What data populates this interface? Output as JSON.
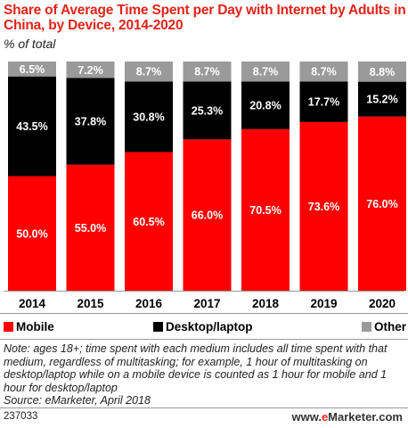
{
  "title": "Share of Average Time Spent per Day with Internet by Adults in China, by Device, 2014-2020",
  "subtitle": "% of total",
  "legend": {
    "mobile": "Mobile",
    "desktop": "Desktop/laptop",
    "other": "Other"
  },
  "note": "Note: ages 18+; time spent with each medium includes all time spent with that medium, regardless of multitasking; for example, 1 hour of multitasking on desktop/laptop while on a mobile device is counted as 1 hour for mobile and 1 hour for desktop/laptop",
  "source": "Source: eMarketer, April 2018",
  "chart_id": "237033",
  "brand": {
    "prefix": "www.",
    "e": "e",
    "rest": "Marketer.com"
  },
  "colors": {
    "mobile": "#ff0000",
    "desktop": "#000000",
    "other": "#9a9a9a",
    "title": "#e2231a"
  },
  "chart_data": {
    "type": "bar",
    "stacked": true,
    "categories": [
      "2014",
      "2015",
      "2016",
      "2017",
      "2018",
      "2019",
      "2020"
    ],
    "series": [
      {
        "name": "Mobile",
        "values": [
          50.0,
          55.0,
          60.5,
          66.0,
          70.5,
          73.6,
          76.0
        ]
      },
      {
        "name": "Desktop/laptop",
        "values": [
          43.5,
          37.8,
          30.8,
          25.3,
          20.8,
          17.7,
          15.2
        ]
      },
      {
        "name": "Other",
        "values": [
          6.5,
          7.2,
          8.7,
          8.7,
          8.7,
          8.7,
          8.8
        ]
      }
    ],
    "ylim": [
      0,
      100
    ],
    "unit": "% of total",
    "grid": false,
    "legend_position": "bottom"
  }
}
